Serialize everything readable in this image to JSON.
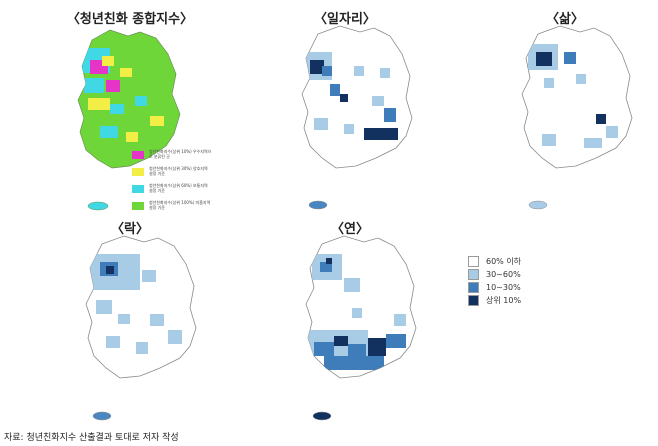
{
  "maps": [
    {
      "id": "composite",
      "title": "〈청년친화 종합지수〉"
    },
    {
      "id": "jobs",
      "title": "〈일자리〉"
    },
    {
      "id": "life",
      "title": "〈삶〉"
    },
    {
      "id": "leisure",
      "title": "〈락〉"
    },
    {
      "id": "connection",
      "title": "〈연〉"
    }
  ],
  "legend": {
    "items": [
      {
        "label": "60% 이하",
        "color": "#ffffff"
      },
      {
        "label": "30~60%",
        "color": "#a9cce6"
      },
      {
        "label": "10~30%",
        "color": "#3f7cba"
      },
      {
        "label": "상위 10%",
        "color": "#13315f"
      }
    ]
  },
  "composite_legend": {
    "items": [
      {
        "label": "청년친화지수(상위 10%) 우수지역으로 분류된 곳",
        "color": "#e634c9"
      },
      {
        "label": "청년친화지수(상위 30%) 양호지역 설정 기준",
        "color": "#f3ee45"
      },
      {
        "label": "청년친화지수(상위 60%) 보통지역 설정 기준",
        "color": "#3fd8e4"
      },
      {
        "label": "청년친화지수(상위 100%) 미흡지역 설정 기준",
        "color": "#6fd63a"
      }
    ]
  },
  "colors": {
    "border": "#8a8a8a",
    "jeju": "#4a86c0"
  },
  "source": "자료: 청년친화지수 산출결과 토대로 저자 작성"
}
